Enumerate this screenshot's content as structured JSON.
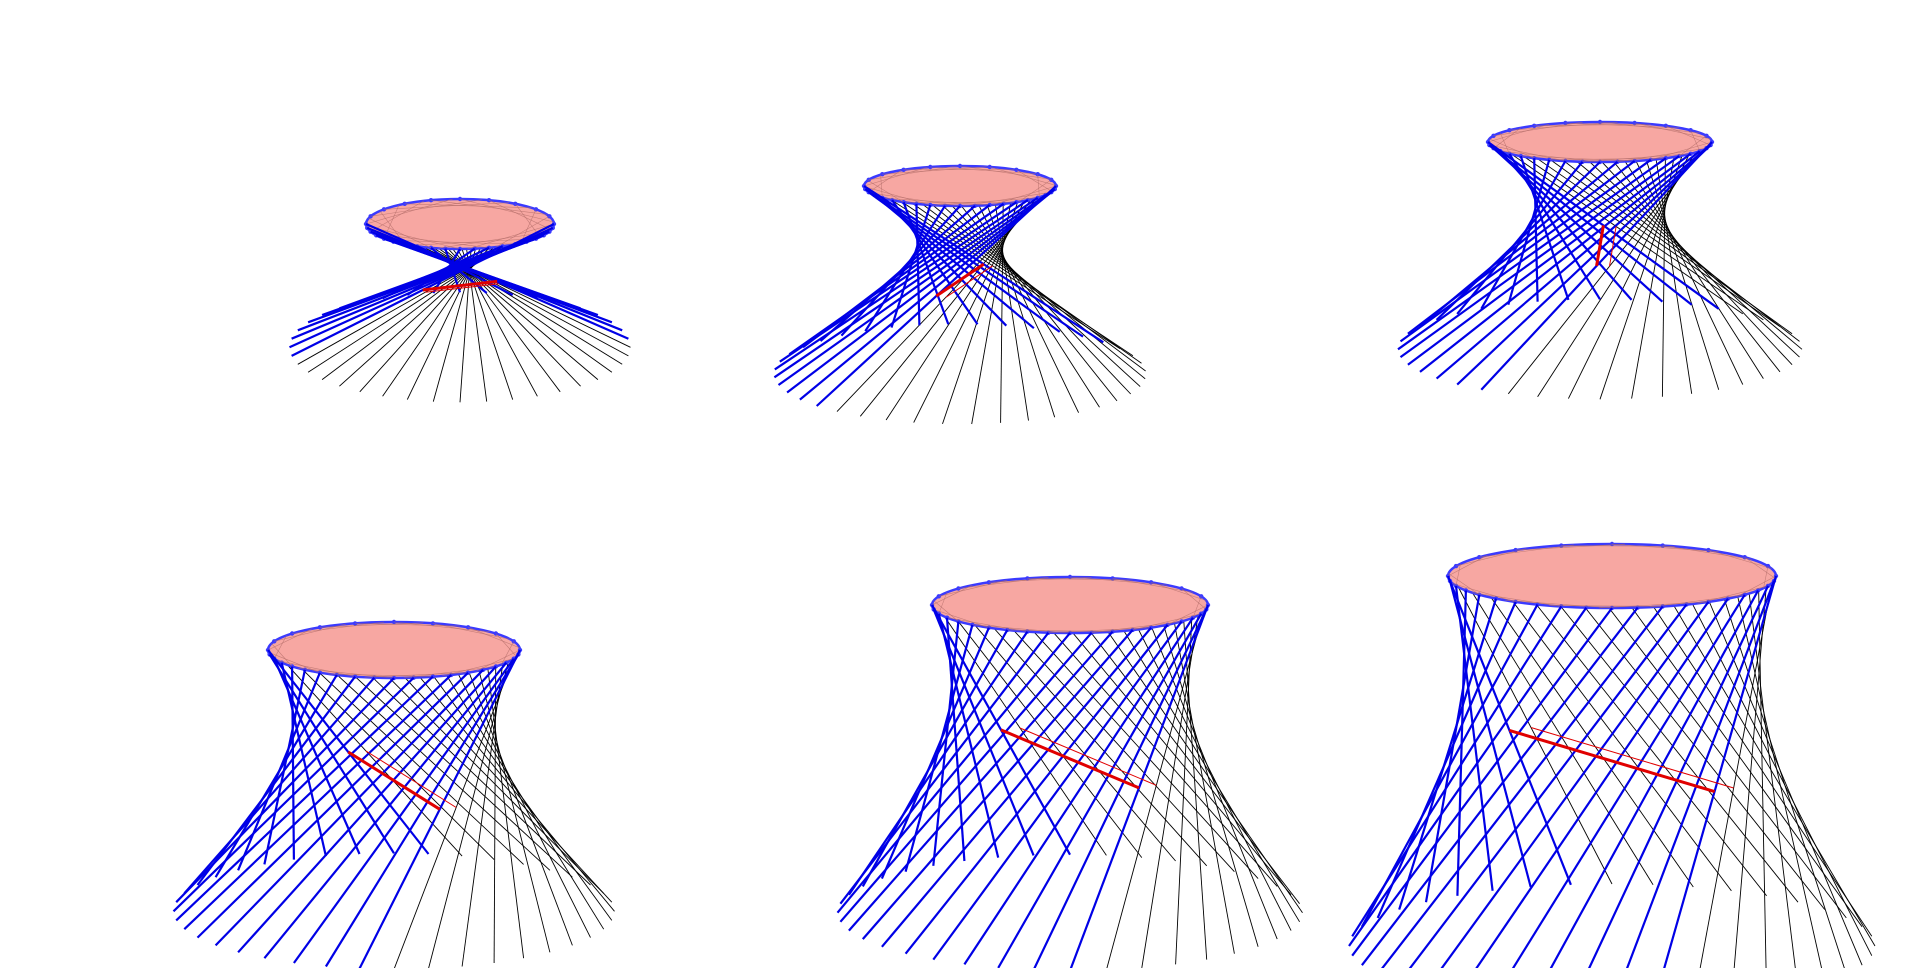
{
  "figure": {
    "panels": [
      {
        "id": "panel-1",
        "twist": 0.95,
        "height": 0.22,
        "tilt": 0.2
      },
      {
        "id": "panel-2",
        "twist": 0.78,
        "height": 0.45,
        "tilt": 0.32
      },
      {
        "id": "panel-3",
        "twist": 0.7,
        "height": 0.62,
        "tilt": 0.42
      },
      {
        "id": "panel-4",
        "twist": 0.55,
        "height": 0.78,
        "tilt": 0.55
      },
      {
        "id": "panel-5",
        "twist": 0.5,
        "height": 0.85,
        "tilt": 0.58
      },
      {
        "id": "panel-6",
        "twist": 0.45,
        "height": 1.0,
        "tilt": 0.65
      }
    ],
    "lines_per_panel": 40,
    "colors": {
      "disk_fill": "#f7a7a2",
      "disk_edge": "#3a3aff",
      "front_lines": "#0000e6",
      "back_lines": "#000000",
      "red_line": "#e00000",
      "background": "#ffffff"
    }
  }
}
